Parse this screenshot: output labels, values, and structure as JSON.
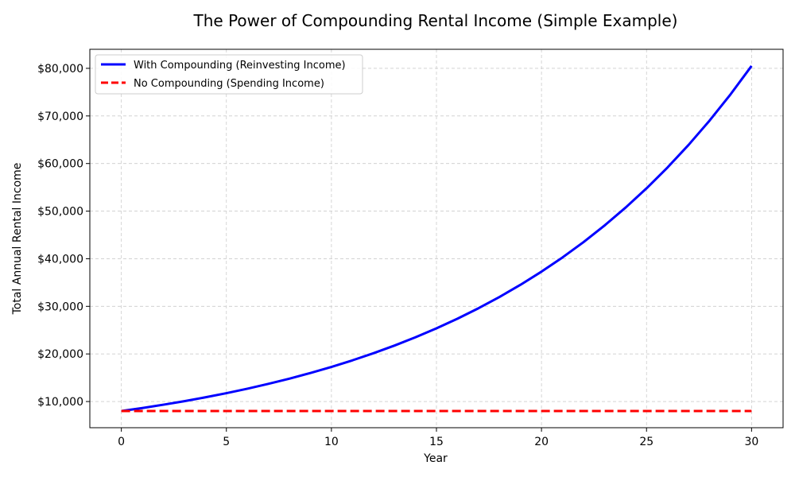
{
  "chart_data": {
    "type": "line",
    "title": "The Power of Compounding Rental Income (Simple Example)",
    "xlabel": "Year",
    "ylabel": "Total Annual Rental Income",
    "xlim": [
      -1.5,
      31.5
    ],
    "ylim": [
      4500,
      84000
    ],
    "xticks": [
      0,
      5,
      10,
      15,
      20,
      25,
      30
    ],
    "xtick_labels": [
      "0",
      "5",
      "10",
      "15",
      "20",
      "25",
      "30"
    ],
    "yticks": [
      10000,
      20000,
      30000,
      40000,
      50000,
      60000,
      70000,
      80000
    ],
    "ytick_labels": [
      "$10,000",
      "$20,000",
      "$30,000",
      "$40,000",
      "$50,000",
      "$60,000",
      "$70,000",
      "$80,000"
    ],
    "grid": true,
    "legend_position": "top-left",
    "x": [
      0,
      1,
      2,
      3,
      4,
      5,
      6,
      7,
      8,
      9,
      10,
      11,
      12,
      13,
      14,
      15,
      16,
      17,
      18,
      19,
      20,
      21,
      22,
      23,
      24,
      25,
      26,
      27,
      28,
      29,
      30
    ],
    "series": [
      {
        "name": "With Compounding (Reinvesting Income)",
        "color": "#0000ff",
        "style": "solid",
        "values": [
          8000,
          8640,
          9331,
          10078,
          10884,
          11755,
          12695,
          13711,
          14808,
          15992,
          17271,
          18653,
          20145,
          21757,
          23497,
          25377,
          27407,
          29600,
          31968,
          34526,
          37288,
          40271,
          43492,
          46972,
          50730,
          54788,
          59171,
          63905,
          69017,
          74539,
          80502
        ]
      },
      {
        "name": "No Compounding (Spending Income)",
        "color": "#ff0000",
        "style": "dashed",
        "values": [
          8000,
          8000,
          8000,
          8000,
          8000,
          8000,
          8000,
          8000,
          8000,
          8000,
          8000,
          8000,
          8000,
          8000,
          8000,
          8000,
          8000,
          8000,
          8000,
          8000,
          8000,
          8000,
          8000,
          8000,
          8000,
          8000,
          8000,
          8000,
          8000,
          8000,
          8000
        ]
      }
    ]
  }
}
